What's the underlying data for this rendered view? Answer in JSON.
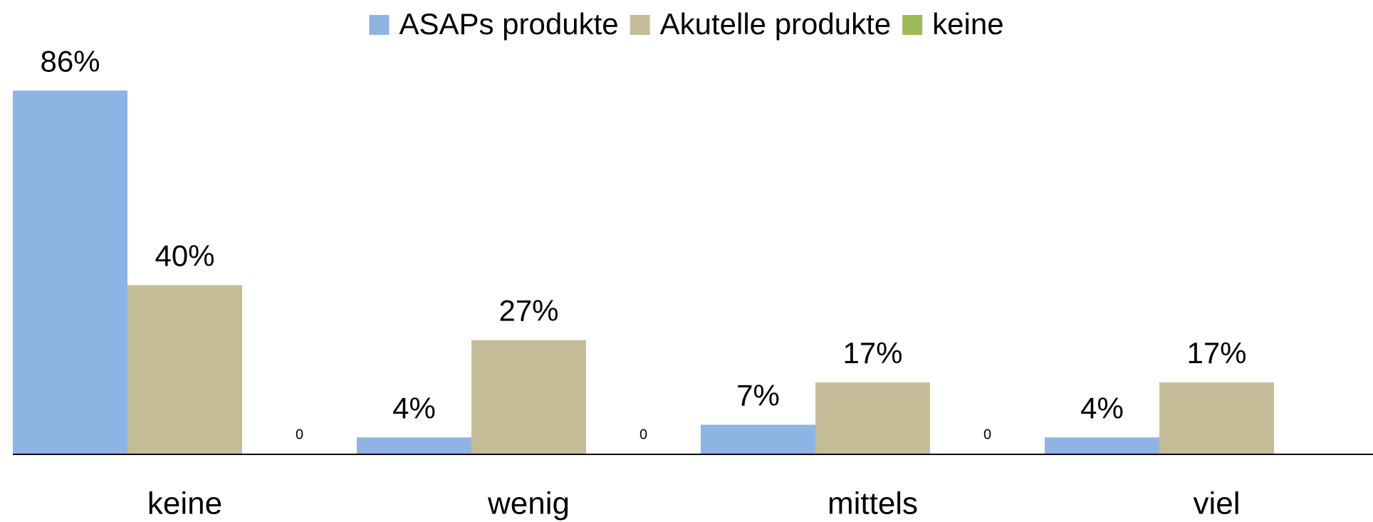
{
  "chart_data": {
    "type": "bar",
    "categories": [
      "keine",
      "wenig",
      "mittels",
      "viel"
    ],
    "series": [
      {
        "name": "ASAPs produkte",
        "color": "#8eb4e3",
        "values": [
          86,
          4,
          7,
          4
        ],
        "value_labels": [
          "86%",
          "4%",
          "7%",
          "4%"
        ]
      },
      {
        "name": "Akutelle produkte",
        "color": "#c4bd97",
        "values": [
          40,
          27,
          17,
          17
        ],
        "value_labels": [
          "40%",
          "27%",
          "17%",
          "17%"
        ]
      },
      {
        "name": "keine",
        "color": "#9bbb59",
        "values": [
          0,
          0,
          0,
          null
        ]
      }
    ],
    "ylim": [
      0,
      100
    ],
    "grid": false,
    "legend": "top"
  }
}
